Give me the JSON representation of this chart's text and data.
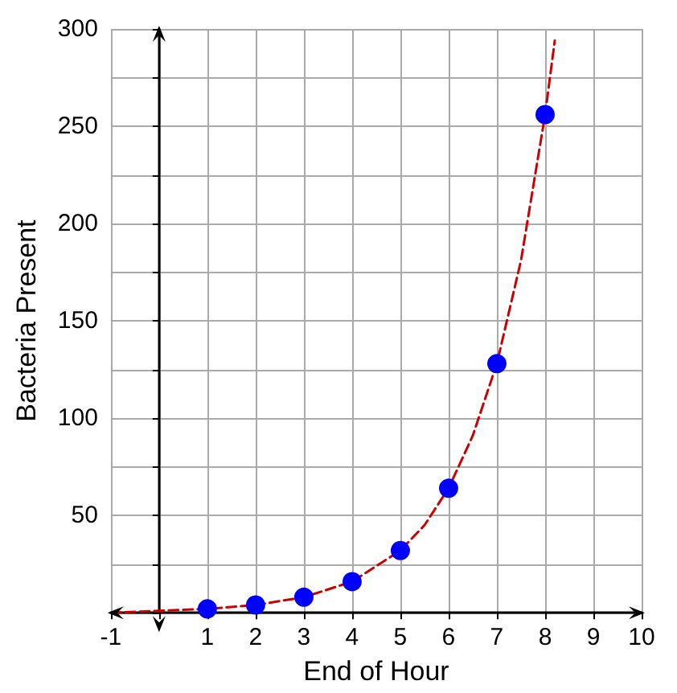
{
  "chart_data": {
    "type": "scatter",
    "xlabel": "End of Hour",
    "ylabel": "Bacteria Present",
    "xlim": [
      -1,
      10
    ],
    "ylim": [
      0,
      300
    ],
    "xticks": [
      -1,
      {
        "value": 0,
        "label": null
      },
      1,
      2,
      3,
      4,
      5,
      6,
      7,
      8,
      9,
      10
    ],
    "yticks": [
      {
        "value": 0,
        "label": null
      },
      {
        "value": 25,
        "label": null
      },
      50,
      {
        "value": 75,
        "label": null
      },
      100,
      {
        "value": 125,
        "label": null
      },
      150,
      {
        "value": 175,
        "label": null
      },
      200,
      {
        "value": 225,
        "label": null
      },
      250,
      {
        "value": 275,
        "label": null
      },
      300
    ],
    "grid": true,
    "series": [
      {
        "type": "line",
        "color": "#cc0000",
        "line_style": "dashed",
        "marker": "none",
        "x": [
          -1,
          0,
          1,
          2,
          3,
          4,
          5,
          5.5,
          6,
          6.5,
          7,
          7.5,
          8,
          8.2
        ],
        "values": [
          0,
          1,
          2,
          4,
          8,
          16,
          32,
          45,
          64,
          91,
          128,
          181,
          256,
          294
        ]
      },
      {
        "type": "scatter",
        "color": "#0000ff",
        "marker": "circle",
        "x": [
          1,
          2,
          3,
          4,
          5,
          6,
          7,
          8
        ],
        "values": [
          2,
          4,
          8,
          16,
          32,
          64,
          128,
          256
        ]
      }
    ]
  }
}
